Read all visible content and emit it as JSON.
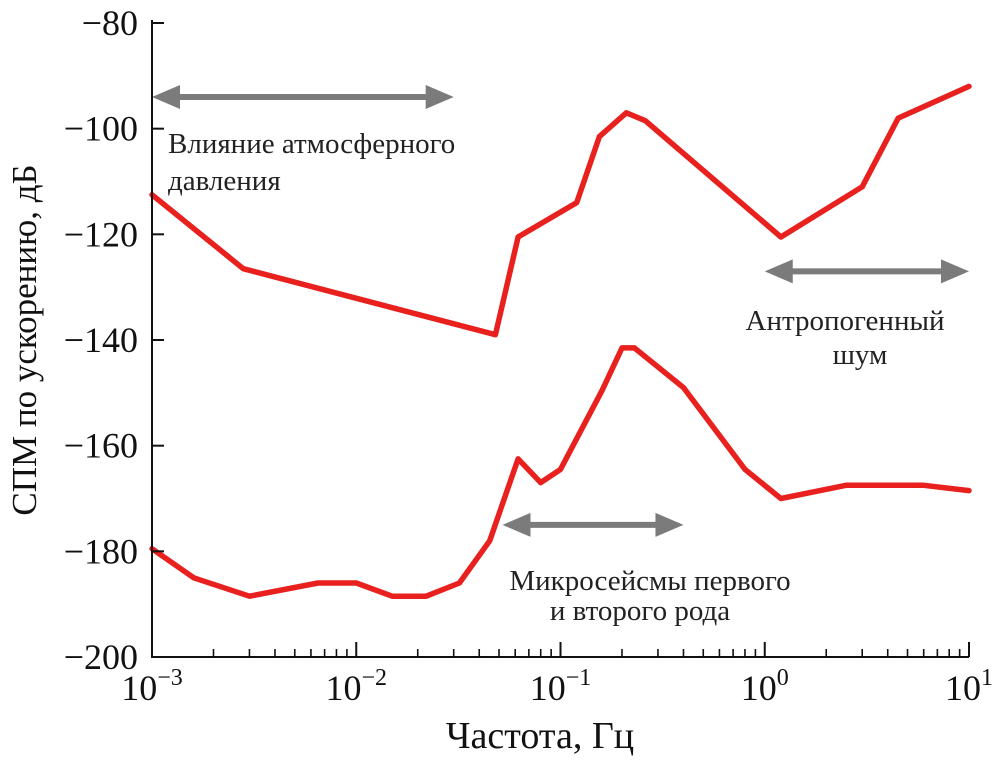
{
  "chart_data": {
    "type": "line",
    "xlabel": "Частота, Гц",
    "ylabel": "СПМ по ускорению, дБ",
    "x_scale": "log",
    "xlim": [
      0.001,
      10
    ],
    "ylim": [
      -200,
      -80
    ],
    "x_ticks": [
      {
        "value": 0.001,
        "base": "10",
        "exp": "−3"
      },
      {
        "value": 0.01,
        "base": "10",
        "exp": "−2"
      },
      {
        "value": 0.1,
        "base": "10",
        "exp": "−1"
      },
      {
        "value": 1,
        "base": "10",
        "exp": "0"
      },
      {
        "value": 10,
        "base": "10",
        "exp": "1"
      }
    ],
    "y_ticks": [
      {
        "value": -80,
        "label": "−80"
      },
      {
        "value": -100,
        "label": "−100"
      },
      {
        "value": -120,
        "label": "−120"
      },
      {
        "value": -140,
        "label": "−140"
      },
      {
        "value": -160,
        "label": "−160"
      },
      {
        "value": -180,
        "label": "−180"
      },
      {
        "value": -200,
        "label": "−200"
      }
    ],
    "grid": false,
    "series": [
      {
        "color": "#e8201e",
        "x": [
          0.001,
          0.0028,
          0.048,
          0.062,
          0.12,
          0.155,
          0.21,
          0.26,
          1.2,
          3.0,
          4.5,
          10
        ],
        "y": [
          -112.5,
          -126.5,
          -139,
          -120.5,
          -114,
          -101.5,
          -97,
          -98.5,
          -120.5,
          -111,
          -98,
          -92
        ]
      },
      {
        "color": "#e8201e",
        "x": [
          0.001,
          0.0016,
          0.003,
          0.0065,
          0.01,
          0.015,
          0.022,
          0.032,
          0.045,
          0.062,
          0.08,
          0.1,
          0.16,
          0.2,
          0.23,
          0.4,
          0.8,
          1.2,
          2.5,
          6,
          10
        ],
        "y": [
          -179.5,
          -185,
          -188.5,
          -186,
          -186,
          -188.5,
          -188.5,
          -186,
          -178,
          -162.5,
          -167,
          -164.5,
          -149.5,
          -141.5,
          -141.5,
          -149,
          -164.5,
          -170,
          -167.5,
          -167.5,
          -168.5
        ]
      }
    ],
    "annotations": [
      {
        "lines": [
          "Влияние атмосферного",
          "давления"
        ],
        "arrow_x": [
          0.001,
          0.03
        ],
        "arrow_y": -94
      },
      {
        "lines": [
          "Антропогенный",
          "шум"
        ],
        "arrow_x": [
          1.0,
          10
        ],
        "arrow_y": -127
      },
      {
        "lines": [
          "Микросейсмы первого",
          "и второго рода"
        ],
        "arrow_x": [
          0.052,
          0.4
        ],
        "arrow_y": -175
      }
    ],
    "colors": {
      "line": "#e8201e",
      "arrow": "#7b7b7b",
      "axis": "#111111"
    }
  }
}
